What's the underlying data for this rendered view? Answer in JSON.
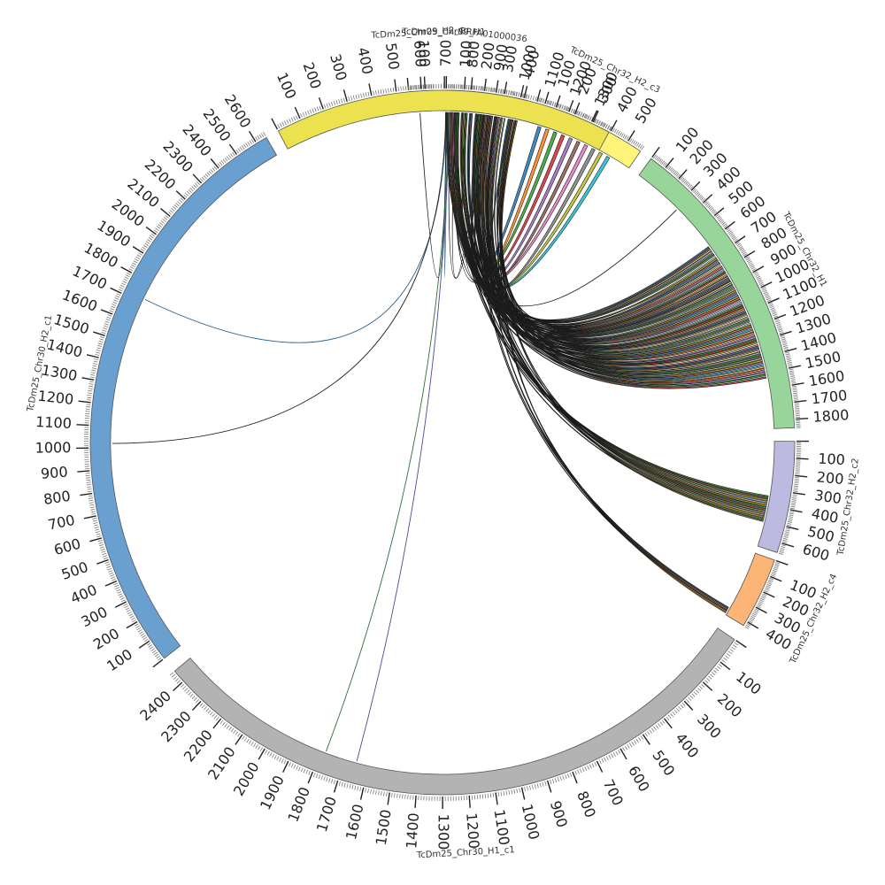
{
  "diagram": {
    "type": "circos",
    "segments": [
      {
        "id": "s0",
        "name": "TcDm25_Chr09_H2_c",
        "length": 150,
        "color": "#5aaa7a",
        "tick_labels": [
          "100"
        ]
      },
      {
        "id": "s1",
        "name": "BRFA01000036",
        "length": 420,
        "color": "#93c7e6",
        "tick_labels": [
          "100",
          "200",
          "300",
          "400"
        ]
      },
      {
        "id": "s2",
        "name": "TcDm25_Chr32_H2_c3",
        "length": 580,
        "color": "#fff37a",
        "tick_labels": [
          "100",
          "200",
          "300",
          "400",
          "500"
        ]
      },
      {
        "id": "s3",
        "name": "TcDm25_Chr32_H1",
        "length": 1850,
        "color": "#98d59a",
        "tick_labels": [
          "100",
          "200",
          "300",
          "400",
          "500",
          "600",
          "700",
          "800",
          "900",
          "1000",
          "1100",
          "1200",
          "1300",
          "1400",
          "1500",
          "1600",
          "1700",
          "1800"
        ]
      },
      {
        "id": "s4",
        "name": "TcDm25_Chr32_H2_c2",
        "length": 660,
        "color": "#bcbae0",
        "tick_labels": [
          "100",
          "200",
          "300",
          "400",
          "500",
          "600"
        ]
      },
      {
        "id": "s5",
        "name": "TcDm25_Chr32_H2_c4",
        "length": 430,
        "color": "#fdb477",
        "tick_labels": [
          "100",
          "200",
          "300",
          "400"
        ]
      },
      {
        "id": "s6",
        "name": "TcDm25_Chr30_H1_c1",
        "length": 2450,
        "color": "#b3b3b3",
        "tick_labels": [
          "100",
          "200",
          "300",
          "400",
          "500",
          "600",
          "700",
          "800",
          "900",
          "1000",
          "1100",
          "1200",
          "1300",
          "1400",
          "1500",
          "1600",
          "1700",
          "1800",
          "1900",
          "2000",
          "2100",
          "2200",
          "2300",
          "2400"
        ]
      },
      {
        "id": "s7",
        "name": "TcDm25_Chr30_H2_c1",
        "length": 2650,
        "color": "#6aa0cf",
        "tick_labels": [
          "100",
          "200",
          "300",
          "400",
          "500",
          "600",
          "700",
          "800",
          "900",
          "1000",
          "1100",
          "1200",
          "1300",
          "1400",
          "1500",
          "1600",
          "1700",
          "1800",
          "1900",
          "2000",
          "2100",
          "2200",
          "2300",
          "2400",
          "2500",
          "2600"
        ]
      },
      {
        "id": "s8",
        "name": "TcDm25_Chr09_H1",
        "length": 1380,
        "color": "#ece14f",
        "tick_labels": [
          "100",
          "200",
          "300",
          "400",
          "500",
          "600",
          "700",
          "800",
          "900",
          "1000",
          "1100",
          "1200",
          "1300"
        ]
      }
    ],
    "link_colors": [
      "#1f77b4",
      "#ff7f0e",
      "#2ca02c",
      "#d62728",
      "#9467bd",
      "#8c564b",
      "#e377c2",
      "#7f7f7f",
      "#bcbd22",
      "#17becf",
      "#ffed6f",
      "#a6cee3",
      "#b2df8a",
      "#fb9a99",
      "#fdbf6f",
      "#cab2d6",
      "#33a02c",
      "#e6ab02"
    ]
  }
}
